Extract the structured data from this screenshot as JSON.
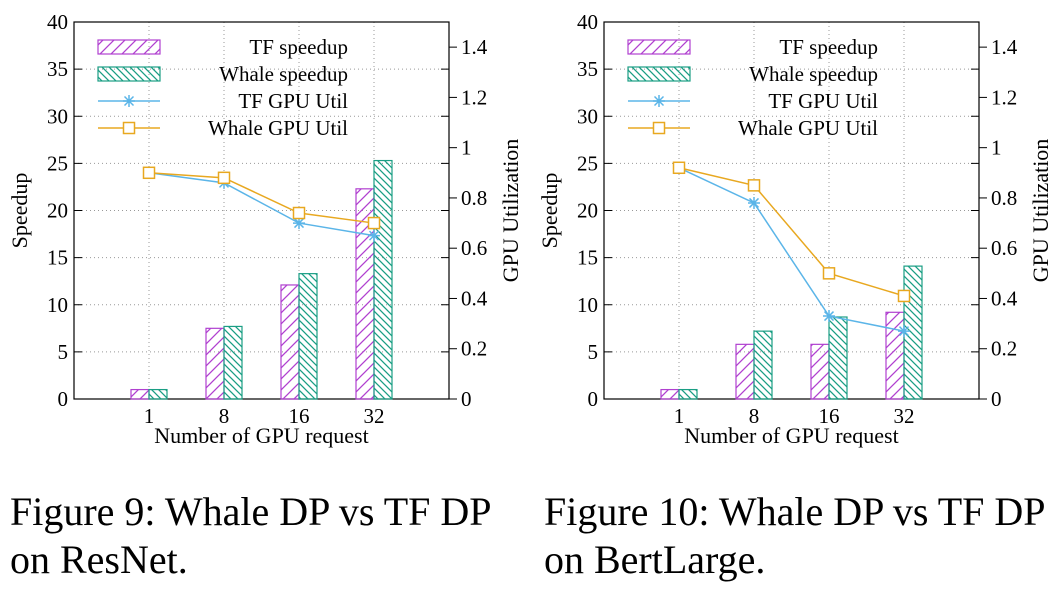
{
  "chart_data": [
    {
      "type": "bar",
      "categories": [
        "1",
        "8",
        "16",
        "32"
      ],
      "xlabel": "Number of GPU request",
      "ylabel": "Speedup",
      "y2label": "GPU Utilization",
      "ylim": [
        0,
        40
      ],
      "y2lim": [
        0,
        1.5
      ],
      "yticks": [
        "0",
        "5",
        "10",
        "15",
        "20",
        "25",
        "30",
        "35",
        "40"
      ],
      "y2ticks": [
        "0",
        "0.2",
        "0.4",
        "0.6",
        "0.8",
        "1",
        "1.2",
        "1.4"
      ],
      "grid": "dotted",
      "legend": "top-left",
      "series": [
        {
          "name": "TF speedup",
          "kind": "bar",
          "color": "#b040d0",
          "values": [
            1.0,
            7.5,
            12.1,
            22.3
          ]
        },
        {
          "name": "Whale speedup",
          "kind": "bar",
          "color": "#1a9e84",
          "values": [
            1.0,
            7.7,
            13.3,
            25.3
          ]
        },
        {
          "name": "TF GPU Util",
          "kind": "line",
          "axis": "right",
          "marker": "star",
          "color": "#5bb5e8",
          "values": [
            0.9,
            0.86,
            0.7,
            0.65
          ]
        },
        {
          "name": "Whale GPU Util",
          "kind": "line",
          "axis": "right",
          "marker": "square",
          "color": "#e8a820",
          "values": [
            0.9,
            0.88,
            0.74,
            0.7
          ]
        }
      ]
    },
    {
      "type": "bar",
      "categories": [
        "1",
        "8",
        "16",
        "32"
      ],
      "xlabel": "Number of GPU request",
      "ylabel": "Speedup",
      "y2label": "GPU Utilization",
      "ylim": [
        0,
        40
      ],
      "y2lim": [
        0,
        1.5
      ],
      "yticks": [
        "0",
        "5",
        "10",
        "15",
        "20",
        "25",
        "30",
        "35",
        "40"
      ],
      "y2ticks": [
        "0",
        "0.2",
        "0.4",
        "0.6",
        "0.8",
        "1",
        "1.2",
        "1.4"
      ],
      "grid": "dotted",
      "legend": "top-left",
      "series": [
        {
          "name": "TF speedup",
          "kind": "bar",
          "color": "#b040d0",
          "values": [
            1.0,
            5.8,
            5.8,
            9.2
          ]
        },
        {
          "name": "Whale speedup",
          "kind": "bar",
          "color": "#1a9e84",
          "values": [
            1.0,
            7.2,
            8.7,
            14.1
          ]
        },
        {
          "name": "TF GPU Util",
          "kind": "line",
          "axis": "right",
          "marker": "star",
          "color": "#5bb5e8",
          "values": [
            0.92,
            0.78,
            0.33,
            0.27
          ]
        },
        {
          "name": "Whale GPU Util",
          "kind": "line",
          "axis": "right",
          "marker": "square",
          "color": "#e8a820",
          "values": [
            0.92,
            0.85,
            0.5,
            0.41
          ]
        }
      ]
    }
  ],
  "captions": [
    [
      "Figure 9: Whale DP vs TF DP",
      "on ResNet."
    ],
    [
      "Figure 10: Whale DP vs TF DP",
      "on BertLarge."
    ]
  ]
}
